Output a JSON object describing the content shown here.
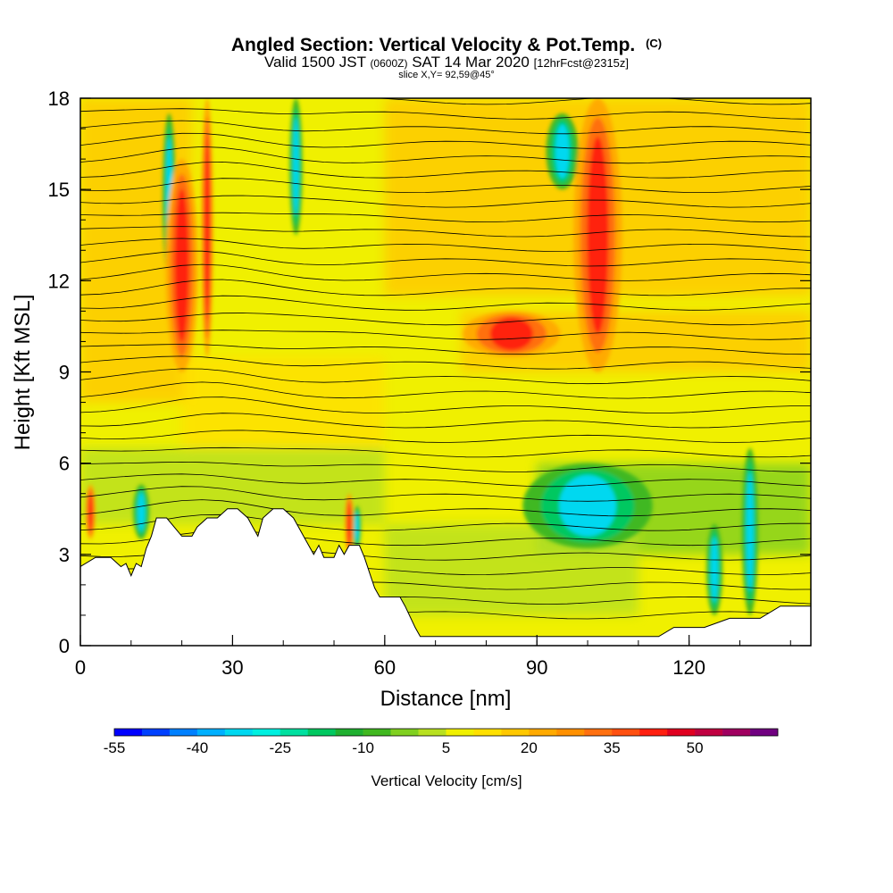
{
  "title": {
    "main": "Angled Section: Vertical Velocity & Pot.Temp.",
    "main_suffix": "(C)",
    "valid_prefix": "Valid 1500 JST",
    "valid_utc": "(0600Z)",
    "valid_date": "SAT 14 Mar 2020",
    "forecast": "[12hrFcst@2315z]",
    "slice": "slice X,Y= 92,59@45°"
  },
  "chart_data": {
    "type": "heatmap",
    "xlabel": "Distance [nm]",
    "ylabel": "Height [Kft MSL]",
    "xlim": [
      0,
      144
    ],
    "ylim": [
      0,
      18
    ],
    "x_ticks": [
      0,
      30,
      60,
      90,
      120
    ],
    "y_ticks": [
      0,
      3,
      6,
      9,
      12,
      15,
      18
    ],
    "colorbar": {
      "title": "Vertical Velocity [cm/s]",
      "tick_labels": [
        -55,
        -40,
        -25,
        -10,
        5,
        20,
        35,
        50
      ],
      "levels": [
        -55,
        -50,
        -45,
        -40,
        -35,
        -30,
        -25,
        -20,
        -15,
        -10,
        -5,
        0,
        5,
        10,
        15,
        20,
        25,
        30,
        35,
        40,
        45,
        50,
        55,
        60
      ],
      "colors": [
        "#0000ff",
        "#0040ff",
        "#0080ff",
        "#00b0ff",
        "#00d8f0",
        "#00f0e0",
        "#00e0a0",
        "#00c860",
        "#20b030",
        "#40b820",
        "#80d020",
        "#b8e020",
        "#f0f000",
        "#ffe000",
        "#ffc800",
        "#ffaa00",
        "#ff9000",
        "#ff7010",
        "#ff5010",
        "#ff2010",
        "#e00020",
        "#c00040",
        "#a00060",
        "#700080"
      ]
    },
    "terrain_profile": [
      [
        0,
        2.6
      ],
      [
        3,
        2.9
      ],
      [
        6,
        2.9
      ],
      [
        8,
        2.6
      ],
      [
        9,
        2.7
      ],
      [
        10,
        2.3
      ],
      [
        11,
        2.7
      ],
      [
        12,
        2.6
      ],
      [
        13,
        3.2
      ],
      [
        14,
        3.6
      ],
      [
        15,
        4.2
      ],
      [
        17,
        4.2
      ],
      [
        19,
        3.8
      ],
      [
        20,
        3.6
      ],
      [
        22,
        3.6
      ],
      [
        23,
        3.9
      ],
      [
        25,
        4.2
      ],
      [
        27,
        4.2
      ],
      [
        29,
        4.5
      ],
      [
        31,
        4.5
      ],
      [
        33,
        4.2
      ],
      [
        34,
        3.9
      ],
      [
        35,
        3.6
      ],
      [
        36,
        4.2
      ],
      [
        38,
        4.5
      ],
      [
        40,
        4.5
      ],
      [
        42,
        4.2
      ],
      [
        43,
        3.9
      ],
      [
        44,
        3.6
      ],
      [
        45,
        3.3
      ],
      [
        46,
        3.0
      ],
      [
        47,
        3.3
      ],
      [
        48,
        2.9
      ],
      [
        50,
        2.9
      ],
      [
        51,
        3.3
      ],
      [
        52,
        3.0
      ],
      [
        53,
        3.3
      ],
      [
        55,
        3.3
      ],
      [
        56,
        2.9
      ],
      [
        57,
        2.4
      ],
      [
        58,
        1.9
      ],
      [
        59,
        1.6
      ],
      [
        63,
        1.6
      ],
      [
        64,
        1.3
      ],
      [
        66,
        0.6
      ],
      [
        67,
        0.3
      ],
      [
        114,
        0.3
      ],
      [
        117,
        0.6
      ],
      [
        123,
        0.6
      ],
      [
        128,
        0.9
      ],
      [
        134,
        0.9
      ],
      [
        138,
        1.3
      ],
      [
        144,
        1.3
      ]
    ],
    "updraft_cores": [
      {
        "x": 25,
        "y_bottom": 9.5,
        "y_top": 18,
        "w": 1.5
      },
      {
        "x": 2,
        "y_bottom": 3.5,
        "y_top": 5.3,
        "w": 1.2
      },
      {
        "x": 102,
        "y_bottom": 9.0,
        "y_top": 18,
        "w": 6
      },
      {
        "x": 85,
        "y_bottom": 9.5,
        "y_top": 11.0,
        "w": 12
      },
      {
        "x": 53,
        "y_bottom": 3.0,
        "y_top": 5.0,
        "w": 1.0
      },
      {
        "x": 20,
        "y_bottom": 9,
        "y_top": 16,
        "w": 4
      }
    ],
    "downdraft_cores": [
      {
        "x": 17.5,
        "y_bottom": 12,
        "y_top": 17.5,
        "w": 1.6
      },
      {
        "x": 42.5,
        "y_bottom": 13.5,
        "y_top": 18,
        "w": 1.6
      },
      {
        "x": 54.5,
        "y_bottom": 3.2,
        "y_top": 4.6,
        "w": 0.8
      },
      {
        "x": 12,
        "y_bottom": 3.5,
        "y_top": 5.3,
        "w": 2
      },
      {
        "x": 100,
        "y_bottom": 3.2,
        "y_top": 6.0,
        "w": 16
      },
      {
        "x": 132,
        "y_bottom": 1.0,
        "y_top": 6.5,
        "w": 2
      },
      {
        "x": 125,
        "y_bottom": 1.0,
        "y_top": 4.0,
        "w": 2
      },
      {
        "x": 95,
        "y_bottom": 15,
        "y_top": 17.5,
        "w": 4
      }
    ],
    "theta_isentrope_count": 36
  }
}
